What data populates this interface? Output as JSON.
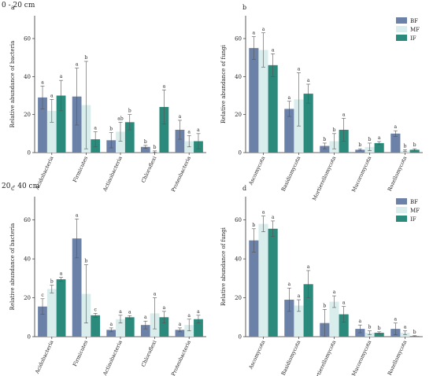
{
  "sections": [
    "0 - 20 cm",
    "20 - 40 cm"
  ],
  "colors": {
    "BF": "#6c81a8",
    "MF": "#d9eeec",
    "IF": "#2a8a7b"
  },
  "chart_data": [
    {
      "panel": "a",
      "type": "bar",
      "ylabel": "Relative abundance of bacteria",
      "ylim": [
        0,
        72
      ],
      "yticks": [
        0,
        20,
        40,
        60
      ],
      "categories": [
        "Acidobacteria",
        "Firmicutes",
        "Actinobacteria",
        "Chloroflexi",
        "Proteobacteria"
      ],
      "series": [
        {
          "name": "BF",
          "values": [
            29,
            29.5,
            6.5,
            3,
            12
          ],
          "err": [
            6,
            15,
            4,
            0.8,
            5
          ],
          "letters": [
            "a",
            "a",
            "b",
            "b",
            "a"
          ]
        },
        {
          "name": "MF",
          "values": [
            22,
            25,
            11,
            0.5,
            6
          ],
          "err": [
            6,
            23,
            5,
            0.4,
            3
          ],
          "letters": [
            "a",
            "b",
            "ab",
            "b",
            "a"
          ]
        },
        {
          "name": "IF",
          "values": [
            30,
            7,
            16,
            24,
            6
          ],
          "err": [
            8,
            4,
            4,
            9,
            4
          ],
          "letters": [
            "a",
            "a",
            "b",
            "a",
            "a"
          ]
        }
      ],
      "legend": false
    },
    {
      "panel": "b",
      "type": "bar",
      "ylabel": "Relative abundance of fungi",
      "ylim": [
        0,
        72
      ],
      "yticks": [
        0,
        20,
        40,
        60
      ],
      "categories": [
        "Ascomycota",
        "Basidiomycota",
        "Mortierellomycota",
        "Mucoromycota",
        "Rozellomycota"
      ],
      "series": [
        {
          "name": "BF",
          "values": [
            55,
            23,
            3.5,
            1.5,
            10
          ],
          "err": [
            6,
            4,
            1.5,
            0.5,
            1.5
          ],
          "letters": [
            "a",
            "a",
            "b",
            "b",
            "a"
          ]
        },
        {
          "name": "MF",
          "values": [
            54,
            28,
            6,
            3,
            1
          ],
          "err": [
            9,
            14,
            4,
            2,
            0.5
          ],
          "letters": [
            "a",
            "a",
            "b",
            "b",
            "b"
          ]
        },
        {
          "name": "IF",
          "values": [
            46,
            31,
            12,
            5,
            1.5
          ],
          "err": [
            6,
            5,
            6,
            0.8,
            0.5
          ],
          "letters": [
            "a",
            "a",
            "a",
            "a",
            "b"
          ]
        }
      ],
      "legend": true
    },
    {
      "panel": "c",
      "type": "bar",
      "ylabel": "Relative abundance of bacteria",
      "ylim": [
        0,
        72
      ],
      "yticks": [
        0,
        20,
        40,
        60
      ],
      "categories": [
        "Acidobacteria",
        "Firmicutes",
        "Actinobacteria",
        "Chloroflexi",
        "Proteobacteria"
      ],
      "series": [
        {
          "name": "BF",
          "values": [
            15.5,
            50.5,
            3.5,
            6,
            3.5
          ],
          "err": [
            4,
            10,
            1,
            2,
            1
          ],
          "letters": [
            "c",
            "a",
            "a",
            "a",
            "a"
          ]
        },
        {
          "name": "MF",
          "values": [
            24.5,
            22,
            9,
            12,
            6
          ],
          "err": [
            2,
            15,
            2,
            8,
            3
          ],
          "letters": [
            "b",
            "b",
            "a",
            "a",
            "a"
          ]
        },
        {
          "name": "IF",
          "values": [
            29.5,
            11,
            10,
            10,
            9
          ],
          "err": [
            1,
            1,
            0.8,
            3,
            2
          ],
          "letters": [
            "a",
            "c",
            "a",
            "a",
            "a"
          ]
        }
      ],
      "legend": false
    },
    {
      "panel": "d",
      "type": "bar",
      "ylabel": "Relative abundance of fungi",
      "ylim": [
        0,
        72
      ],
      "yticks": [
        0,
        20,
        40,
        60
      ],
      "categories": [
        "Ascomycota",
        "Basidiomycota",
        "Mortierellomycota",
        "Mucoromycota",
        "Rozellomycota"
      ],
      "series": [
        {
          "name": "BF",
          "values": [
            49.5,
            19,
            7,
            4,
            4
          ],
          "err": [
            6,
            6,
            7,
            2,
            3
          ],
          "letters": [
            "b",
            "a",
            "b",
            "a",
            "a"
          ]
        },
        {
          "name": "MF",
          "values": [
            58,
            16,
            18,
            2,
            2
          ],
          "err": [
            4,
            3,
            3,
            1,
            1
          ],
          "letters": [
            "a",
            "a",
            "a",
            "b",
            "a"
          ]
        },
        {
          "name": "IF",
          "values": [
            55.5,
            27,
            11.5,
            2,
            0.3
          ],
          "err": [
            4,
            7,
            4,
            0.5,
            0.2
          ],
          "letters": [
            "a",
            "a",
            "a",
            "b",
            "b"
          ]
        }
      ],
      "legend": true
    }
  ]
}
